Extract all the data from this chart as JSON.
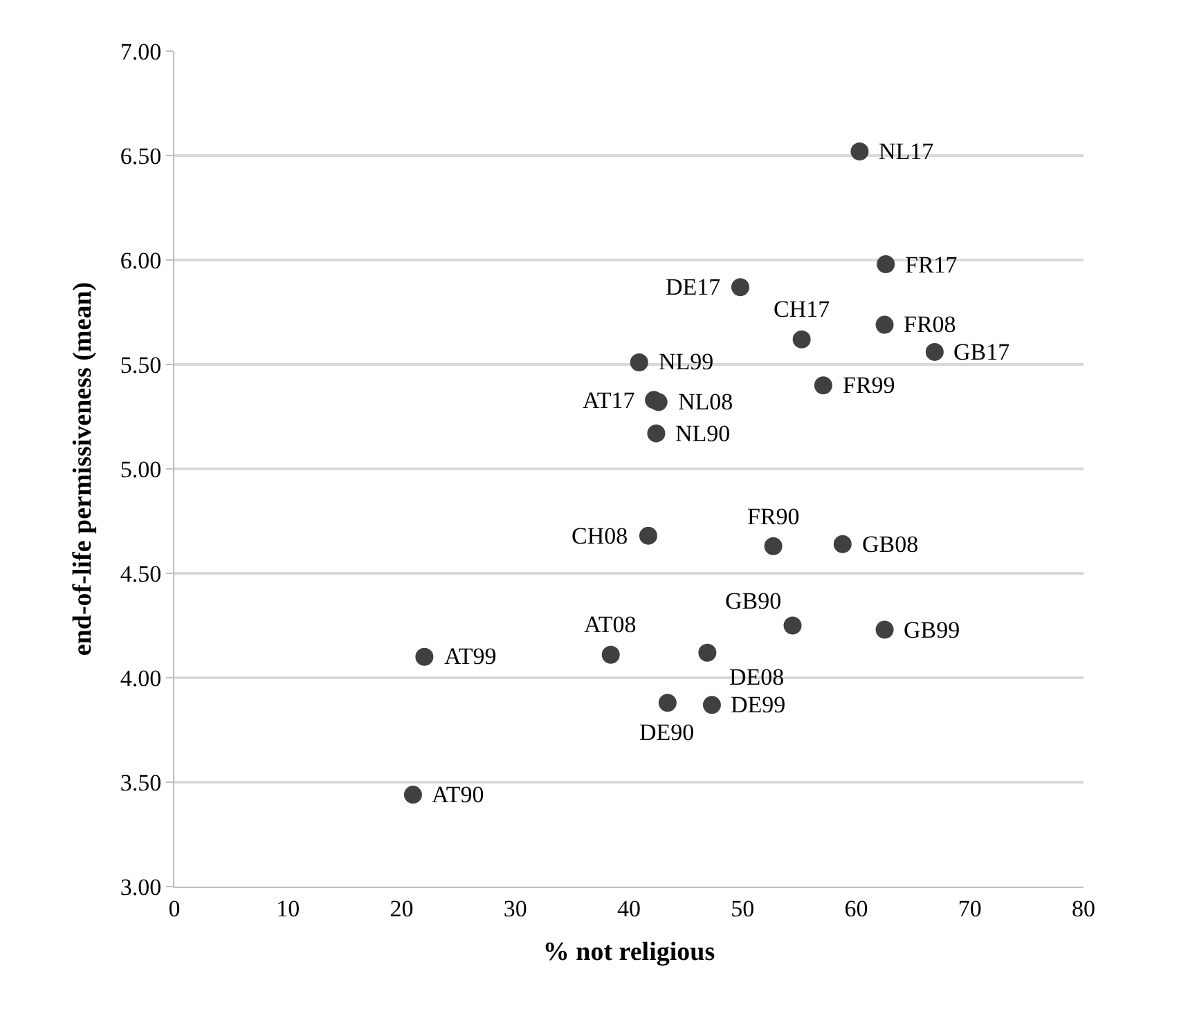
{
  "chart_data": {
    "type": "scatter",
    "xlabel": "% not religious",
    "ylabel": "end-of-life permissiveness (mean)",
    "x": [
      60.3,
      62.6,
      49.8,
      55.2,
      62.5,
      66.9,
      40.9,
      42.2,
      42.6,
      57.1,
      42.4,
      41.7,
      52.7,
      58.8,
      54.4,
      62.5,
      22.0,
      38.4,
      46.9,
      43.4,
      47.3,
      21.0
    ],
    "series": [
      {
        "color": "#404040",
        "values": [
          6.52,
          5.98,
          5.87,
          5.62,
          5.69,
          5.56,
          5.51,
          5.33,
          5.32,
          5.4,
          5.17,
          4.68,
          4.63,
          4.64,
          4.25,
          4.23,
          4.1,
          4.11,
          4.12,
          3.88,
          3.87,
          3.44
        ]
      }
    ],
    "annotations": [
      {
        "text": "NL17",
        "x": 60.3,
        "y": 6.52
      },
      {
        "text": "FR17",
        "x": 62.6,
        "y": 5.98
      },
      {
        "text": "DE17",
        "x": 49.8,
        "y": 5.87
      },
      {
        "text": "CH17",
        "x": 55.2,
        "y": 5.62
      },
      {
        "text": "FR08",
        "x": 62.5,
        "y": 5.69
      },
      {
        "text": "GB17",
        "x": 66.9,
        "y": 5.56
      },
      {
        "text": "NL99",
        "x": 40.9,
        "y": 5.51
      },
      {
        "text": "AT17",
        "x": 42.2,
        "y": 5.33
      },
      {
        "text": "NL08",
        "x": 42.6,
        "y": 5.32
      },
      {
        "text": "FR99",
        "x": 57.1,
        "y": 5.4
      },
      {
        "text": "NL90",
        "x": 42.4,
        "y": 5.17
      },
      {
        "text": "CH08",
        "x": 41.7,
        "y": 4.68
      },
      {
        "text": "FR90",
        "x": 52.7,
        "y": 4.63
      },
      {
        "text": "GB08",
        "x": 58.8,
        "y": 4.64
      },
      {
        "text": "GB90",
        "x": 54.4,
        "y": 4.25
      },
      {
        "text": "GB99",
        "x": 62.5,
        "y": 4.23
      },
      {
        "text": "AT99",
        "x": 22.0,
        "y": 4.1
      },
      {
        "text": "AT08",
        "x": 38.4,
        "y": 4.11
      },
      {
        "text": "DE08",
        "x": 46.9,
        "y": 4.12
      },
      {
        "text": "DE90",
        "x": 43.4,
        "y": 3.88
      },
      {
        "text": "DE99",
        "x": 47.3,
        "y": 3.87
      },
      {
        "text": "AT90",
        "x": 21.0,
        "y": 3.44
      }
    ],
    "xlim": [
      0,
      80
    ],
    "xticks": [
      0,
      10,
      20,
      30,
      40,
      50,
      60,
      70,
      80
    ],
    "ylim": [
      3,
      7
    ],
    "yticks": [
      {
        "value": 3,
        "label": "3.00"
      },
      {
        "value": 3.5,
        "label": "3.50"
      },
      {
        "value": 4,
        "label": "4.00"
      },
      {
        "value": 4.5,
        "label": "4.50"
      },
      {
        "value": 5,
        "label": "5.00"
      },
      {
        "value": 5.5,
        "label": "5.50"
      },
      {
        "value": 6,
        "label": "6.00"
      },
      {
        "value": 6.5,
        "label": "6.50"
      },
      {
        "value": 7,
        "label": "7.00"
      }
    ],
    "grid": "y",
    "marker": "circle"
  }
}
